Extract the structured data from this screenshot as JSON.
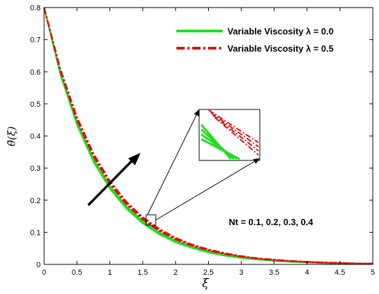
{
  "chart_data": {
    "type": "line",
    "xlabel": "ξ",
    "ylabel": "θ̃(ξ)",
    "xlim": [
      0,
      5
    ],
    "ylim": [
      0,
      0.8
    ],
    "xticks": [
      "0",
      "0.5",
      "1",
      "1.5",
      "2",
      "2.5",
      "3",
      "3.5",
      "4",
      "4.5",
      "5"
    ],
    "yticks": [
      "0",
      "0.1",
      "0.2",
      "0.3",
      "0.4",
      "0.5",
      "0.6",
      "0.7",
      "0.8"
    ],
    "grid": false,
    "legend_position": "top-right",
    "legend": [
      {
        "label": "Variable Viscosity λ = 0.0",
        "color": "#22dd22",
        "style": "solid"
      },
      {
        "label": "Variable Viscosity λ = 0.5",
        "color": "#dd1111",
        "style": "dashdot"
      }
    ],
    "annotation": "Nt = 0.1, 0.2, 0.3, 0.4",
    "x": [
      0,
      0.25,
      0.5,
      0.75,
      1.0,
      1.25,
      1.5,
      1.75,
      2.0,
      2.25,
      2.5,
      2.75,
      3.0,
      3.25,
      3.5,
      3.75,
      4.0,
      4.25,
      4.5,
      4.75,
      5.0
    ],
    "series": [
      {
        "group": "λ = 0.0",
        "values": [
          0.8,
          0.59,
          0.435,
          0.32,
          0.236,
          0.174,
          0.128,
          0.094,
          0.069,
          0.051,
          0.037,
          0.027,
          0.02,
          0.015,
          0.011,
          0.008,
          0.006,
          0.004,
          0.003,
          0.002,
          0.002
        ]
      },
      {
        "group": "λ = 0.0",
        "values": [
          0.8,
          0.592,
          0.438,
          0.323,
          0.239,
          0.177,
          0.13,
          0.096,
          0.071,
          0.053,
          0.039,
          0.028,
          0.021,
          0.016,
          0.012,
          0.009,
          0.006,
          0.005,
          0.003,
          0.002,
          0.002
        ]
      },
      {
        "group": "λ = 0.0",
        "values": [
          0.8,
          0.594,
          0.441,
          0.327,
          0.242,
          0.179,
          0.133,
          0.098,
          0.073,
          0.054,
          0.04,
          0.029,
          0.022,
          0.016,
          0.012,
          0.009,
          0.007,
          0.005,
          0.004,
          0.003,
          0.002
        ]
      },
      {
        "group": "λ = 0.0",
        "values": [
          0.8,
          0.597,
          0.444,
          0.33,
          0.245,
          0.182,
          0.135,
          0.1,
          0.074,
          0.055,
          0.041,
          0.03,
          0.022,
          0.017,
          0.012,
          0.009,
          0.007,
          0.005,
          0.004,
          0.003,
          0.002
        ]
      },
      {
        "group": "λ = 0.5",
        "values": [
          0.8,
          0.6,
          0.449,
          0.336,
          0.251,
          0.187,
          0.14,
          0.104,
          0.078,
          0.058,
          0.043,
          0.032,
          0.024,
          0.018,
          0.013,
          0.01,
          0.007,
          0.005,
          0.004,
          0.003,
          0.002
        ]
      },
      {
        "group": "λ = 0.5",
        "values": [
          0.8,
          0.602,
          0.452,
          0.339,
          0.254,
          0.19,
          0.142,
          0.106,
          0.079,
          0.059,
          0.044,
          0.033,
          0.024,
          0.018,
          0.014,
          0.01,
          0.008,
          0.006,
          0.004,
          0.003,
          0.002
        ]
      },
      {
        "group": "λ = 0.5",
        "values": [
          0.8,
          0.605,
          0.456,
          0.343,
          0.257,
          0.193,
          0.145,
          0.108,
          0.081,
          0.061,
          0.045,
          0.034,
          0.025,
          0.019,
          0.014,
          0.011,
          0.008,
          0.006,
          0.004,
          0.003,
          0.003
        ]
      },
      {
        "group": "λ = 0.5",
        "values": [
          0.8,
          0.607,
          0.459,
          0.346,
          0.26,
          0.196,
          0.147,
          0.111,
          0.083,
          0.062,
          0.047,
          0.035,
          0.026,
          0.019,
          0.015,
          0.011,
          0.008,
          0.006,
          0.005,
          0.003,
          0.003
        ]
      }
    ],
    "colors": {
      "green": "#22dd22",
      "red": "#dd1111",
      "axis": "#000000"
    }
  }
}
